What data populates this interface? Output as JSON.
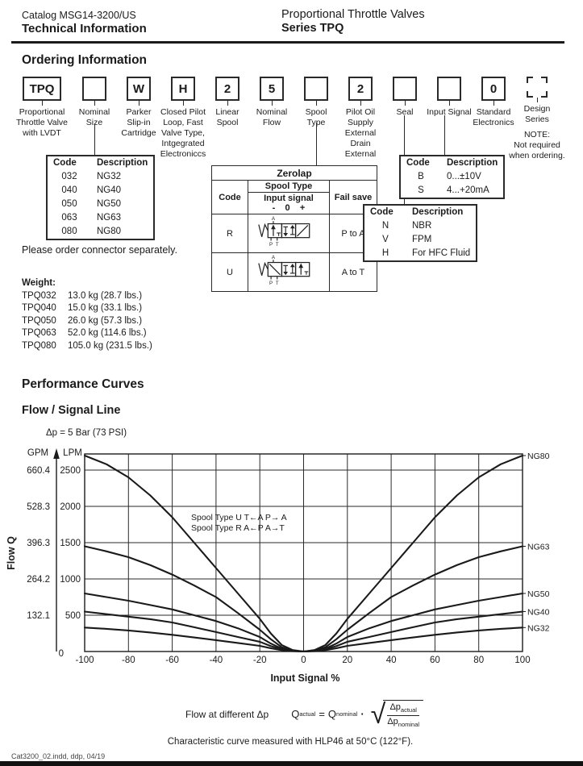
{
  "header": {
    "catalog": "Catalog MSG14-3200/US",
    "subtitle": "Technical Information",
    "title": "Proportional Throttle Valves",
    "series": "Series TPQ"
  },
  "ordering": {
    "heading": "Ordering Information",
    "columns": [
      {
        "id": "product",
        "code": "TPQ",
        "label": "Proportional\nThrottle Valve\nwith LVDT",
        "box": "solid",
        "wide": true
      },
      {
        "id": "nominal-size",
        "code": "",
        "label": "Nominal\nSize",
        "box": "solid"
      },
      {
        "id": "cartridge",
        "code": "W",
        "label": "Parker\nSlip-in\nCartridge",
        "box": "solid"
      },
      {
        "id": "pilot-loop",
        "code": "H",
        "label": "Closed Pilot\nLoop, Fast\nValve Type,\nIntgegrated\nElectroniccs",
        "box": "solid"
      },
      {
        "id": "linear-spool",
        "code": "2",
        "label": "Linear\nSpool",
        "box": "solid"
      },
      {
        "id": "nominal-flow",
        "code": "5",
        "label": "Nominal\nFlow",
        "box": "solid"
      },
      {
        "id": "spool-type",
        "code": "",
        "label": "Spool\nType",
        "box": "solid"
      },
      {
        "id": "pilot-oil",
        "code": "2",
        "label": "Pilot Oil\nSupply\nExternal\nDrain\nExternal",
        "box": "solid"
      },
      {
        "id": "seal",
        "code": "",
        "label": "Seal",
        "box": "solid"
      },
      {
        "id": "input-signal",
        "code": "",
        "label": "Input Signal",
        "box": "solid"
      },
      {
        "id": "electronics",
        "code": "0",
        "label": "Standard\nElectronics",
        "box": "solid"
      },
      {
        "id": "design-series",
        "code": "",
        "label": "Design\nSeries",
        "note": "NOTE:\nNot required\nwhen ordering.",
        "box": "corners"
      }
    ],
    "nominal_table": {
      "headers": [
        "Code",
        "Description"
      ],
      "rows": [
        [
          "032",
          "NG32"
        ],
        [
          "040",
          "NG40"
        ],
        [
          "050",
          "NG50"
        ],
        [
          "063",
          "NG63"
        ],
        [
          "080",
          "NG80"
        ]
      ]
    },
    "zerolap_table": {
      "title": "Zerolap",
      "col_code": "Code",
      "col_spool": "Spool Type",
      "col_input": "Input signal",
      "col_signs": "-    0    +",
      "col_fail": "Fail save",
      "port_top": "A",
      "port_p": "P",
      "port_t": "T",
      "rows": [
        {
          "code": "R",
          "symbol": "R",
          "fail": "P to A"
        },
        {
          "code": "U",
          "symbol": "U",
          "fail": "A to T"
        }
      ]
    },
    "input_table": {
      "headers": [
        "Code",
        "Description"
      ],
      "rows": [
        [
          "B",
          "0...±10V"
        ],
        [
          "S",
          "4...+20mA"
        ]
      ]
    },
    "seal_table": {
      "headers": [
        "Code",
        "Description"
      ],
      "rows": [
        [
          "N",
          "NBR"
        ],
        [
          "V",
          "FPM"
        ],
        [
          "H",
          "For HFC Fluid"
        ]
      ]
    },
    "connector_note": "Please order connector separately.",
    "weight": {
      "heading": "Weight:",
      "rows": [
        [
          "TPQ032",
          "13.0 kg (28.7 lbs.)"
        ],
        [
          "TPQ040",
          "15.0 kg (33.1 lbs.)"
        ],
        [
          "TPQ050",
          "26.0 kg (57.3 lbs.)"
        ],
        [
          "TPQ063",
          "52.0 kg (114.6 lbs.)"
        ],
        [
          "TPQ080",
          "105.0 kg (231.5 lbs.)"
        ]
      ]
    }
  },
  "performance": {
    "heading": "Performance Curves",
    "subheading": "Flow / Signal Line",
    "dp_note": "Δp = 5 Bar (73 PSI)",
    "formula": {
      "label": "Flow at different Δp",
      "q": "Q",
      "sub_actual": "actual",
      "sub_nominal": "nominal",
      "eq": "=",
      "dot": "·",
      "sqrt": "√",
      "dp": "Δp"
    },
    "char_note": "Characteristic curve measured with HLP46 at 50°C (122°F)."
  },
  "chart_data": {
    "type": "line",
    "title": "Flow / Signal Line",
    "xlabel": "Input Signal %",
    "ylabel_axis": "Flow Q",
    "unit_left": "GPM",
    "unit_right": "LPM",
    "zero_label": "0",
    "x_ticks": [
      -100,
      -80,
      -60,
      -40,
      -20,
      0,
      20,
      40,
      60,
      80,
      100
    ],
    "y_ticks_lpm": [
      500,
      1000,
      1500,
      2000,
      2500
    ],
    "y_ticks_gpm": [
      "132.1",
      "264.2",
      "396.3",
      "528.3",
      "660.4"
    ],
    "xlim": [
      -100,
      100
    ],
    "ylim": [
      0,
      2720
    ],
    "grid": true,
    "symmetric": true,
    "annotation": [
      "Spool Type U   T←A      P→ A",
      "Spool Type R   A←P      A→T"
    ],
    "x_abs": [
      0,
      5,
      10,
      15,
      20,
      30,
      40,
      50,
      60,
      70,
      80,
      90,
      100
    ],
    "series": [
      {
        "name": "NG80",
        "values": [
          0,
          20,
          90,
          250,
          450,
          800,
          1150,
          1500,
          1850,
          2150,
          2400,
          2580,
          2700
        ]
      },
      {
        "name": "NG63",
        "values": [
          0,
          15,
          60,
          170,
          300,
          530,
          750,
          910,
          1060,
          1190,
          1300,
          1380,
          1450
        ]
      },
      {
        "name": "NG50",
        "values": [
          0,
          10,
          40,
          110,
          200,
          320,
          420,
          500,
          580,
          640,
          700,
          750,
          800
        ]
      },
      {
        "name": "NG40",
        "values": [
          0,
          8,
          30,
          75,
          134,
          200,
          268,
          335,
          400,
          445,
          480,
          515,
          550
        ]
      },
      {
        "name": "NG32",
        "values": [
          0,
          5,
          18,
          45,
          78,
          117,
          156,
          194,
          230,
          262,
          290,
          312,
          330
        ]
      }
    ]
  },
  "footer": {
    "text": "Cat3200_02.indd, ddp, 04/19"
  },
  "colors": {
    "ink": "#1b1b1b",
    "grid": "#2a2a2a",
    "curve": "#1a1a1a"
  }
}
